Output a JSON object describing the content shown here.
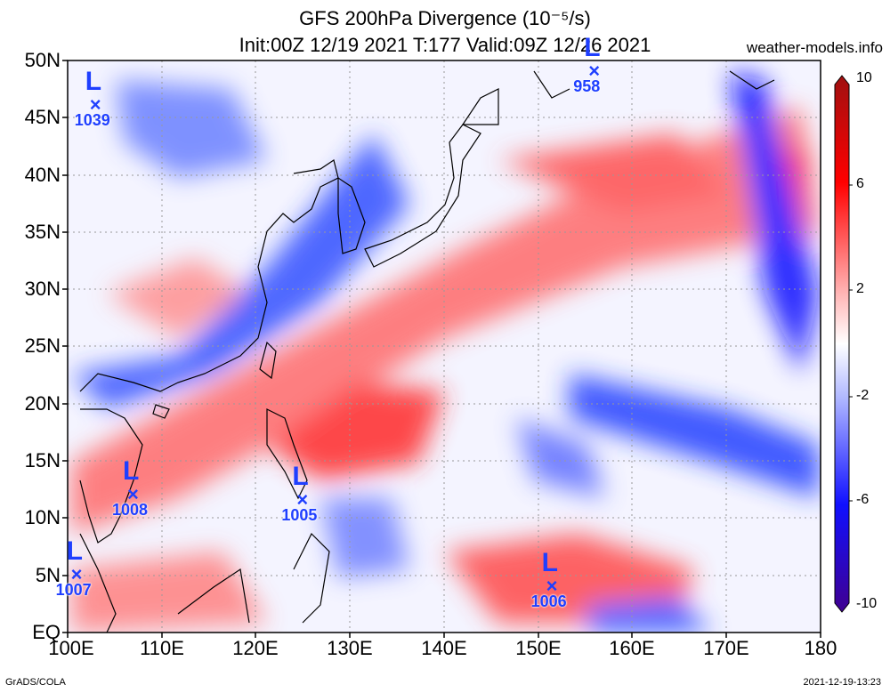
{
  "title_line1": "GFS 200hPa Divergence (10⁻⁵/s)",
  "title_line2": "Init:00Z 12/19 2021 T:177 Valid:09Z 12/26 2021",
  "site": "weather-models.info",
  "lat_labels": [
    "50N",
    "45N",
    "40N",
    "35N",
    "30N",
    "25N",
    "20N",
    "15N",
    "10N",
    "5N",
    "EQ"
  ],
  "lon_labels": [
    "100E",
    "110E",
    "120E",
    "130E",
    "140E",
    "150E",
    "160E",
    "170E",
    "180"
  ],
  "colorbar_labels": [
    "10",
    "6",
    "2",
    "-2",
    "-6",
    "-10"
  ],
  "footer_left": "GrADS/COLA",
  "footer_right": "2021-12-19-13:23",
  "lows": [
    {
      "pressure": "1039",
      "lon": 103,
      "lat": 46
    },
    {
      "pressure": "958",
      "lon": 156,
      "lat": 49
    },
    {
      "pressure": "1008",
      "lon": 107,
      "lat": 12
    },
    {
      "pressure": "1005",
      "lon": 125,
      "lat": 11.5
    },
    {
      "pressure": "1007",
      "lon": 101,
      "lat": 5
    },
    {
      "pressure": "1006",
      "lon": 151.5,
      "lat": 4
    }
  ],
  "colors": {
    "positive": "#ff2020",
    "negative": "#1f3fff",
    "low_marker": "#1f3fff"
  }
}
